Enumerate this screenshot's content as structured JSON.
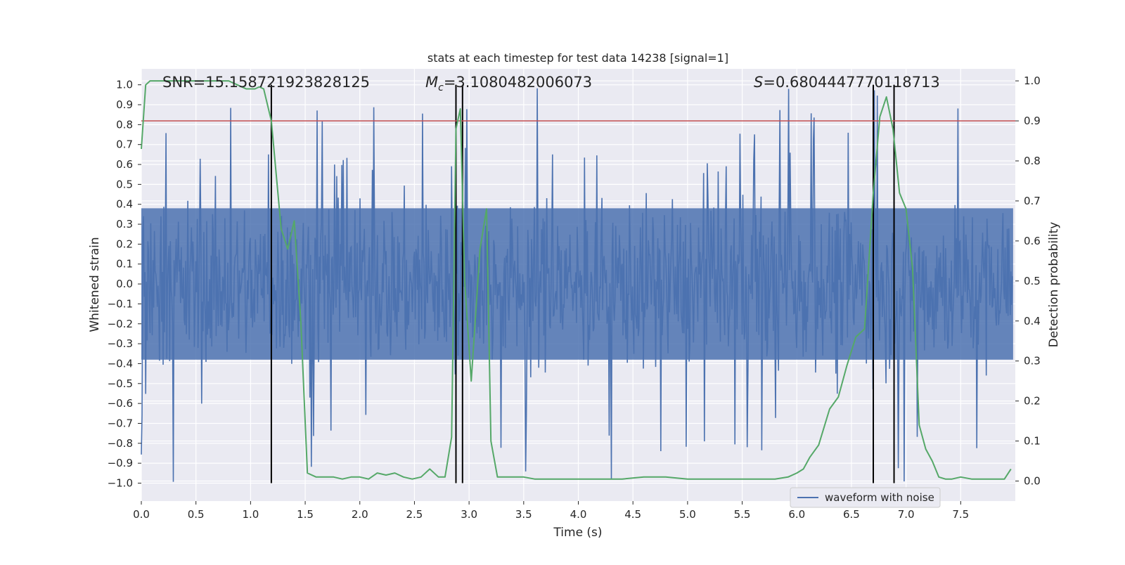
{
  "chart_data": {
    "type": "line",
    "title": "stats at each timestep for test data 14238 [signal=1]",
    "xlabel": "Time (s)",
    "ylabel_left": "Whitened strain",
    "ylabel_right": "Detection probability",
    "xlim": [
      0.0,
      8.0
    ],
    "ylim_left": [
      -1.09,
      1.08
    ],
    "ylim_right": [
      -0.05,
      1.03
    ],
    "grid": true,
    "legend": {
      "placement": "bottom-right",
      "entries": [
        "waveform with noise"
      ]
    },
    "x_ticks": [
      "0.0",
      "0.5",
      "1.0",
      "1.5",
      "2.0",
      "2.5",
      "3.0",
      "3.5",
      "4.0",
      "4.5",
      "5.0",
      "5.5",
      "6.0",
      "6.5",
      "7.0",
      "7.5"
    ],
    "y_ticks_left": [
      "1.0",
      "0.9",
      "0.8",
      "0.7",
      "0.6",
      "0.5",
      "0.4",
      "0.3",
      "0.2",
      "0.1",
      "0.0",
      "−0.1",
      "−0.2",
      "−0.3",
      "−0.4",
      "−0.5",
      "−0.6",
      "−0.7",
      "−0.8",
      "−0.9",
      "−1.0"
    ],
    "y_ticks_right": [
      "1.0",
      "0.9",
      "0.8",
      "0.7",
      "0.6",
      "0.5",
      "0.4",
      "0.3",
      "0.2",
      "0.1",
      "0.0"
    ],
    "annotations": {
      "snr": "SNR=15.158721923828125",
      "mc_symbol": "M",
      "mc_sub": "c",
      "mc_value": "=3.1080482006073",
      "s_symbol": "S",
      "s_value": "=0.6804447770118713"
    },
    "threshold": {
      "value_right_axis": 0.9,
      "color": "#c44e52"
    },
    "vertical_markers_s": [
      1.19,
      2.88,
      2.94,
      6.7,
      6.89
    ],
    "colors": {
      "waveform": "#4c72b0",
      "probability": "#55a868",
      "markers": "#000000",
      "plot_bg": "#eaeaf2"
    },
    "waveform_stats": {
      "n_samples": 1200,
      "core_amplitude": 0.38,
      "peak_max": 1.0,
      "peak_min": -1.0
    },
    "series": [
      {
        "name": "detection probability",
        "axis": "right",
        "x": [
          0.0,
          0.04,
          0.08,
          0.16,
          0.32,
          0.48,
          0.64,
          0.8,
          0.88,
          0.96,
          1.04,
          1.08,
          1.12,
          1.19,
          1.28,
          1.34,
          1.4,
          1.46,
          1.52,
          1.6,
          1.68,
          1.76,
          1.84,
          1.92,
          2.0,
          2.08,
          2.16,
          2.24,
          2.32,
          2.4,
          2.48,
          2.56,
          2.64,
          2.72,
          2.78,
          2.84,
          2.88,
          2.92,
          2.96,
          3.02,
          3.1,
          3.16,
          3.2,
          3.26,
          3.32,
          3.4,
          3.5,
          3.6,
          3.8,
          4.0,
          4.2,
          4.4,
          4.6,
          4.8,
          5.0,
          5.2,
          5.4,
          5.6,
          5.8,
          5.92,
          6.0,
          6.06,
          6.12,
          6.2,
          6.3,
          6.38,
          6.46,
          6.54,
          6.62,
          6.7,
          6.76,
          6.82,
          6.88,
          6.94,
          7.0,
          7.06,
          7.12,
          7.18,
          7.24,
          7.3,
          7.36,
          7.42,
          7.5,
          7.6,
          7.7,
          7.8,
          7.9,
          7.96
        ],
        "values": [
          0.83,
          0.99,
          1.0,
          1.0,
          1.0,
          1.0,
          1.0,
          1.0,
          0.99,
          0.98,
          0.98,
          0.985,
          0.98,
          0.9,
          0.63,
          0.58,
          0.65,
          0.4,
          0.02,
          0.01,
          0.01,
          0.01,
          0.005,
          0.01,
          0.01,
          0.005,
          0.02,
          0.015,
          0.02,
          0.01,
          0.005,
          0.01,
          0.03,
          0.01,
          0.01,
          0.11,
          0.88,
          0.93,
          0.5,
          0.25,
          0.58,
          0.68,
          0.1,
          0.01,
          0.01,
          0.01,
          0.01,
          0.005,
          0.005,
          0.005,
          0.005,
          0.005,
          0.01,
          0.01,
          0.005,
          0.005,
          0.005,
          0.005,
          0.005,
          0.01,
          0.02,
          0.03,
          0.06,
          0.09,
          0.18,
          0.21,
          0.29,
          0.36,
          0.38,
          0.72,
          0.91,
          0.96,
          0.88,
          0.72,
          0.68,
          0.53,
          0.14,
          0.08,
          0.05,
          0.01,
          0.005,
          0.005,
          0.01,
          0.005,
          0.005,
          0.005,
          0.005,
          0.03
        ]
      }
    ]
  }
}
